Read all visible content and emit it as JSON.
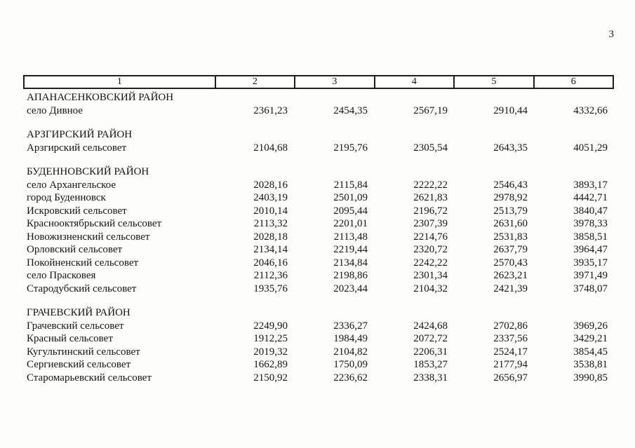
{
  "page": {
    "number": "3"
  },
  "table": {
    "header": [
      "1",
      "2",
      "3",
      "4",
      "5",
      "6"
    ],
    "rows": [
      {
        "type": "section",
        "label": "АПАНАСЕНКОВСКИЙ РАЙОН",
        "values": [
          "",
          "",
          "",
          "",
          ""
        ]
      },
      {
        "type": "data",
        "label": "село Дивное",
        "values": [
          "2361,23",
          "2454,35",
          "2567,19",
          "2910,44",
          "4332,66"
        ]
      },
      {
        "type": "spacer",
        "label": "",
        "values": [
          "",
          "",
          "",
          "",
          ""
        ]
      },
      {
        "type": "section",
        "label": "АРЗГИРСКИЙ РАЙОН",
        "values": [
          "",
          "",
          "",
          "",
          ""
        ]
      },
      {
        "type": "data",
        "label": "Арзгирский сельсовет",
        "values": [
          "2104,68",
          "2195,76",
          "2305,54",
          "2643,35",
          "4051,29"
        ]
      },
      {
        "type": "spacer",
        "label": "",
        "values": [
          "",
          "",
          "",
          "",
          ""
        ]
      },
      {
        "type": "section",
        "label": "БУДЕННОВСКИЙ РАЙОН",
        "values": [
          "",
          "",
          "",
          "",
          ""
        ]
      },
      {
        "type": "data",
        "label": "село Архангельское",
        "values": [
          "2028,16",
          "2115,84",
          "2222,22",
          "2546,43",
          "3893,17"
        ]
      },
      {
        "type": "data",
        "label": "город Буденновск",
        "values": [
          "2403,19",
          "2501,09",
          "2621,83",
          "2978,92",
          "4442,71"
        ]
      },
      {
        "type": "data",
        "label": "Искровский сельсовет",
        "values": [
          "2010,14",
          "2095,44",
          "2196,72",
          "2513,79",
          "3840,47"
        ]
      },
      {
        "type": "data",
        "label": "Краснооктябрьский сельсовет",
        "values": [
          "2113,32",
          "2201,01",
          "2307,39",
          "2631,60",
          "3978,33"
        ]
      },
      {
        "type": "data",
        "label": "Новожизненский сельсовет",
        "values": [
          "2028,18",
          "2113,48",
          "2214,76",
          "2531,83",
          "3858,51"
        ]
      },
      {
        "type": "data",
        "label": "Орловский сельсовет",
        "values": [
          "2134,14",
          "2219,44",
          "2320,72",
          "2637,79",
          "3964,47"
        ]
      },
      {
        "type": "data",
        "label": "Покойненский сельсовет",
        "values": [
          "2046,16",
          "2134,84",
          "2242,22",
          "2570,43",
          "3935,17"
        ]
      },
      {
        "type": "data",
        "label": "село Прасковея",
        "values": [
          "2112,36",
          "2198,86",
          "2301,34",
          "2623,21",
          "3971,49"
        ]
      },
      {
        "type": "data",
        "label": "Стародубский сельсовет",
        "values": [
          "1935,76",
          "2023,44",
          "2104,32",
          "2421,39",
          "3748,07"
        ]
      },
      {
        "type": "spacer",
        "label": "",
        "values": [
          "",
          "",
          "",
          "",
          ""
        ]
      },
      {
        "type": "section",
        "label": "ГРАЧЕВСКИЙ РАЙОН",
        "values": [
          "",
          "",
          "",
          "",
          ""
        ]
      },
      {
        "type": "data",
        "label": "Грачевский сельсовет",
        "values": [
          "2249,90",
          "2336,27",
          "2424,68",
          "2702,86",
          "3969,26"
        ]
      },
      {
        "type": "data",
        "label": "Красный сельсовет",
        "values": [
          "1912,25",
          "1984,49",
          "2072,72",
          "2337,56",
          "3429,21"
        ]
      },
      {
        "type": "data",
        "label": "Кугультинский сельсовет",
        "values": [
          "2019,32",
          "2104,82",
          "2206,31",
          "2524,17",
          "3854,45"
        ]
      },
      {
        "type": "data",
        "label": "Сергиевский сельсовет",
        "values": [
          "1662,89",
          "1750,09",
          "1853,27",
          "2177,94",
          "3538,81"
        ]
      },
      {
        "type": "data",
        "label": "Старомарьевский сельсовет",
        "values": [
          "2150,92",
          "2236,62",
          "2338,31",
          "2656,97",
          "3990,85"
        ]
      }
    ]
  }
}
